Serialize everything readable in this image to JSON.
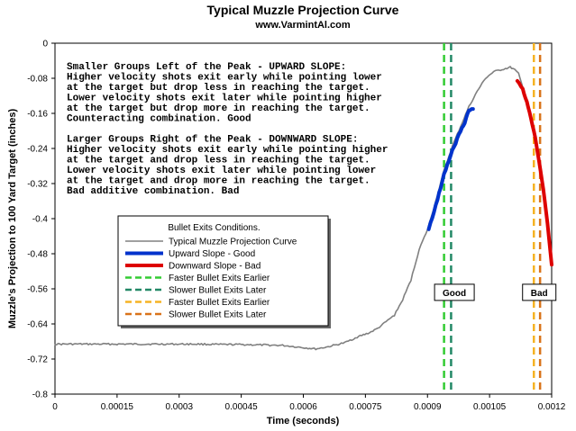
{
  "chart_data": {
    "type": "line",
    "title": "Typical Muzzle Projection Curve",
    "subtitle": "www.VarmintAl.com",
    "xlabel": "Time (seconds)",
    "ylabel": "Muzzle's Projection to 100 Yard Target (inches)",
    "xlim": [
      0,
      0.0012
    ],
    "ylim": [
      -0.8,
      0
    ],
    "x_ticks": [
      {
        "value": 0,
        "label": "0"
      },
      {
        "value": 0.00015,
        "label": "0.00015"
      },
      {
        "value": 0.0003,
        "label": "0.0003"
      },
      {
        "value": 0.00045,
        "label": "0.00045"
      },
      {
        "value": 0.0006,
        "label": "0.0006"
      },
      {
        "value": 0.00075,
        "label": "0.00075"
      },
      {
        "value": 0.0009,
        "label": "0.0009"
      },
      {
        "value": 0.00105,
        "label": "0.00105"
      },
      {
        "value": 0.0012,
        "label": "0.0012"
      }
    ],
    "y_ticks": [
      {
        "value": 0,
        "label": "0"
      },
      {
        "value": -0.08,
        "label": "-0.08"
      },
      {
        "value": -0.16,
        "label": "-0.16"
      },
      {
        "value": -0.24,
        "label": "-0.24"
      },
      {
        "value": -0.32,
        "label": "-0.32"
      },
      {
        "value": -0.4,
        "label": "-0.4"
      },
      {
        "value": -0.48,
        "label": "-0.48"
      },
      {
        "value": -0.56,
        "label": "-0.56"
      },
      {
        "value": -0.64,
        "label": "-0.64"
      },
      {
        "value": -0.72,
        "label": "-0.72"
      },
      {
        "value": -0.8,
        "label": "-0.8"
      }
    ],
    "grid": false,
    "legend": {
      "title": "Bullet Exits Conditions.",
      "placement": "center-left",
      "entries": [
        {
          "label": "Typical Muzzle Projection Curve",
          "color": "#808080",
          "style": "solid"
        },
        {
          "label": "Upward Slope - Good",
          "color": "#0033cc",
          "style": "thick"
        },
        {
          "label": "Downward Slope - Bad",
          "color": "#dd0000",
          "style": "thick"
        },
        {
          "label": "Faster Bullet Exits Earlier",
          "color": "#33cc33",
          "style": "dashed"
        },
        {
          "label": "Slower Bullet Exits Later",
          "color": "#228866",
          "style": "dashed"
        },
        {
          "label": "Faster Bullet Exits Earlier",
          "color": "#f5b324",
          "style": "dashed"
        },
        {
          "label": "Slower Bullet Exits Later",
          "color": "#d9731a",
          "style": "dashed"
        }
      ]
    },
    "series": [
      {
        "name": "Typical Muzzle Projection Curve",
        "color": "#808080",
        "points": [
          [
            0,
            -0.686
          ],
          [
            5e-05,
            -0.686
          ],
          [
            0.0001,
            -0.686
          ],
          [
            0.00015,
            -0.686
          ],
          [
            0.0002,
            -0.686
          ],
          [
            0.00025,
            -0.686
          ],
          [
            0.0003,
            -0.686
          ],
          [
            0.00035,
            -0.686
          ],
          [
            0.0004,
            -0.687
          ],
          [
            0.00045,
            -0.687
          ],
          [
            0.0005,
            -0.688
          ],
          [
            0.00055,
            -0.689
          ],
          [
            0.0006,
            -0.694
          ],
          [
            0.00063,
            -0.697
          ],
          [
            0.00066,
            -0.692
          ],
          [
            0.0007,
            -0.683
          ],
          [
            0.00073,
            -0.67
          ],
          [
            0.00076,
            -0.66
          ],
          [
            0.00078,
            -0.65
          ],
          [
            0.0008,
            -0.635
          ],
          [
            0.00082,
            -0.62
          ],
          [
            0.00084,
            -0.585
          ],
          [
            0.00086,
            -0.54
          ],
          [
            0.00088,
            -0.47
          ],
          [
            0.0009,
            -0.425
          ],
          [
            0.00092,
            -0.36
          ],
          [
            0.00094,
            -0.29
          ],
          [
            0.00096,
            -0.235
          ],
          [
            0.00098,
            -0.19
          ],
          [
            0.001,
            -0.145
          ],
          [
            0.00102,
            -0.11
          ],
          [
            0.00104,
            -0.08
          ],
          [
            0.00106,
            -0.065
          ],
          [
            0.00108,
            -0.06
          ],
          [
            0.0011,
            -0.055
          ],
          [
            0.00111,
            -0.06
          ],
          [
            0.00112,
            -0.07
          ],
          [
            0.00114,
            -0.13
          ],
          [
            0.00116,
            -0.22
          ],
          [
            0.00118,
            -0.34
          ],
          [
            0.00119,
            -0.42
          ],
          [
            0.0012,
            -0.5
          ]
        ]
      },
      {
        "name": "Upward Slope - Good",
        "color": "#0033cc",
        "points": [
          [
            0.000903,
            -0.425
          ],
          [
            0.00092,
            -0.37
          ],
          [
            0.00094,
            -0.3
          ],
          [
            0.00096,
            -0.245
          ],
          [
            0.00098,
            -0.2
          ],
          [
            0.00099,
            -0.18
          ],
          [
            0.001,
            -0.155
          ],
          [
            0.00101,
            -0.15
          ]
        ]
      },
      {
        "name": "Downward Slope - Bad",
        "color": "#dd0000",
        "points": [
          [
            0.001117,
            -0.085
          ],
          [
            0.00113,
            -0.105
          ],
          [
            0.00114,
            -0.135
          ],
          [
            0.00115,
            -0.17
          ],
          [
            0.00116,
            -0.215
          ],
          [
            0.00117,
            -0.27
          ],
          [
            0.00118,
            -0.335
          ],
          [
            0.00119,
            -0.41
          ],
          [
            0.0012,
            -0.505
          ]
        ]
      }
    ],
    "vertical_lines": [
      {
        "x": 0.00094,
        "color": "#33cc33",
        "label": "Faster Bullet Exits Earlier"
      },
      {
        "x": 0.000957,
        "color": "#228866",
        "label": "Slower Bullet Exits Later"
      },
      {
        "x": 0.001157,
        "color": "#f5b324",
        "label": "Faster Bullet Exits Earlier"
      },
      {
        "x": 0.001172,
        "color": "#d9731a",
        "label": "Slower Bullet Exits Later"
      }
    ],
    "markers": [
      {
        "text": "Good",
        "x": 0.000965,
        "y": -0.568
      },
      {
        "text": "Bad",
        "x": 0.00117,
        "y": -0.568
      }
    ],
    "annotations": [
      "Smaller Groups Left of the Peak - UPWARD SLOPE:",
      "Higher velocity shots exit early while pointing lower",
      "at the target but drop less in reaching the target.",
      "Lower velocity shots exit later while pointing higher",
      "at the target but drop more in reaching the target.",
      "Counteracting combination. Good",
      "",
      "Larger Groups Right of the Peak - DOWNWARD SLOPE:",
      "Higher velocity shots exit early while pointing higher",
      "at the target and drop less in reaching the target.",
      "Lower velocity shots exit later while pointing lower",
      "at the target and drop more in reaching the target.",
      "Bad additive combination. Bad"
    ]
  }
}
